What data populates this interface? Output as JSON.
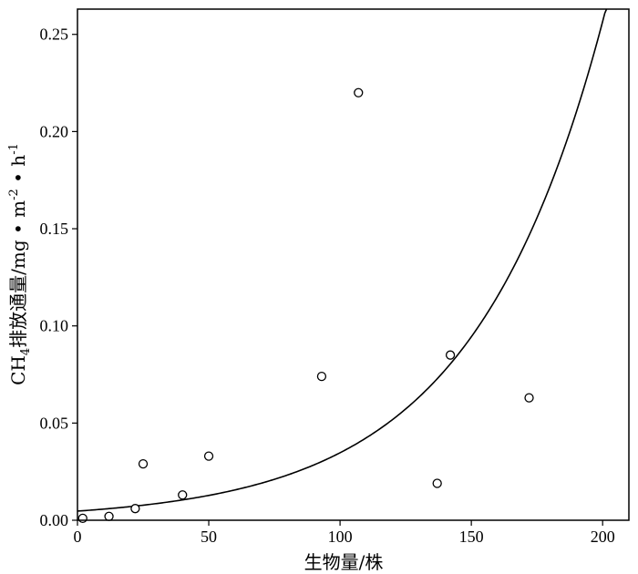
{
  "chart_data": {
    "type": "scatter",
    "title": "",
    "xlabel": "生物量/株",
    "ylabel_parts": {
      "prefix": "CH",
      "prefix_sub": "4",
      "main": "排放通量/mg • m",
      "m_exp": "-2",
      "mid": " • h",
      "h_exp": "-1"
    },
    "xlim": [
      0,
      210
    ],
    "ylim": [
      0,
      0.263
    ],
    "xticks": [
      0,
      50,
      100,
      150,
      200
    ],
    "xtick_labels": [
      "0",
      "50",
      "100",
      "150",
      "200"
    ],
    "yticks": [
      0.0,
      0.05,
      0.1,
      0.15,
      0.2,
      0.25
    ],
    "ytick_labels": [
      "0.00",
      "0.05",
      "0.10",
      "0.15",
      "0.20",
      "0.25"
    ],
    "grid": false,
    "legend": "none",
    "points": [
      {
        "x": 2,
        "y": 0.001
      },
      {
        "x": 12,
        "y": 0.002
      },
      {
        "x": 22,
        "y": 0.006
      },
      {
        "x": 25,
        "y": 0.029
      },
      {
        "x": 40,
        "y": 0.013
      },
      {
        "x": 50,
        "y": 0.033
      },
      {
        "x": 93,
        "y": 0.074
      },
      {
        "x": 107,
        "y": 0.22
      },
      {
        "x": 137,
        "y": 0.019
      },
      {
        "x": 142,
        "y": 0.085
      },
      {
        "x": 172,
        "y": 0.063
      }
    ],
    "fit_curve": {
      "model": "exponential",
      "a": 0.0047,
      "b": 0.02,
      "x_range": [
        0,
        201.5
      ]
    },
    "colors": {
      "axis": "#000000",
      "marker_edge": "#000000",
      "marker_fill": "#ffffff",
      "curve": "#000000"
    }
  }
}
